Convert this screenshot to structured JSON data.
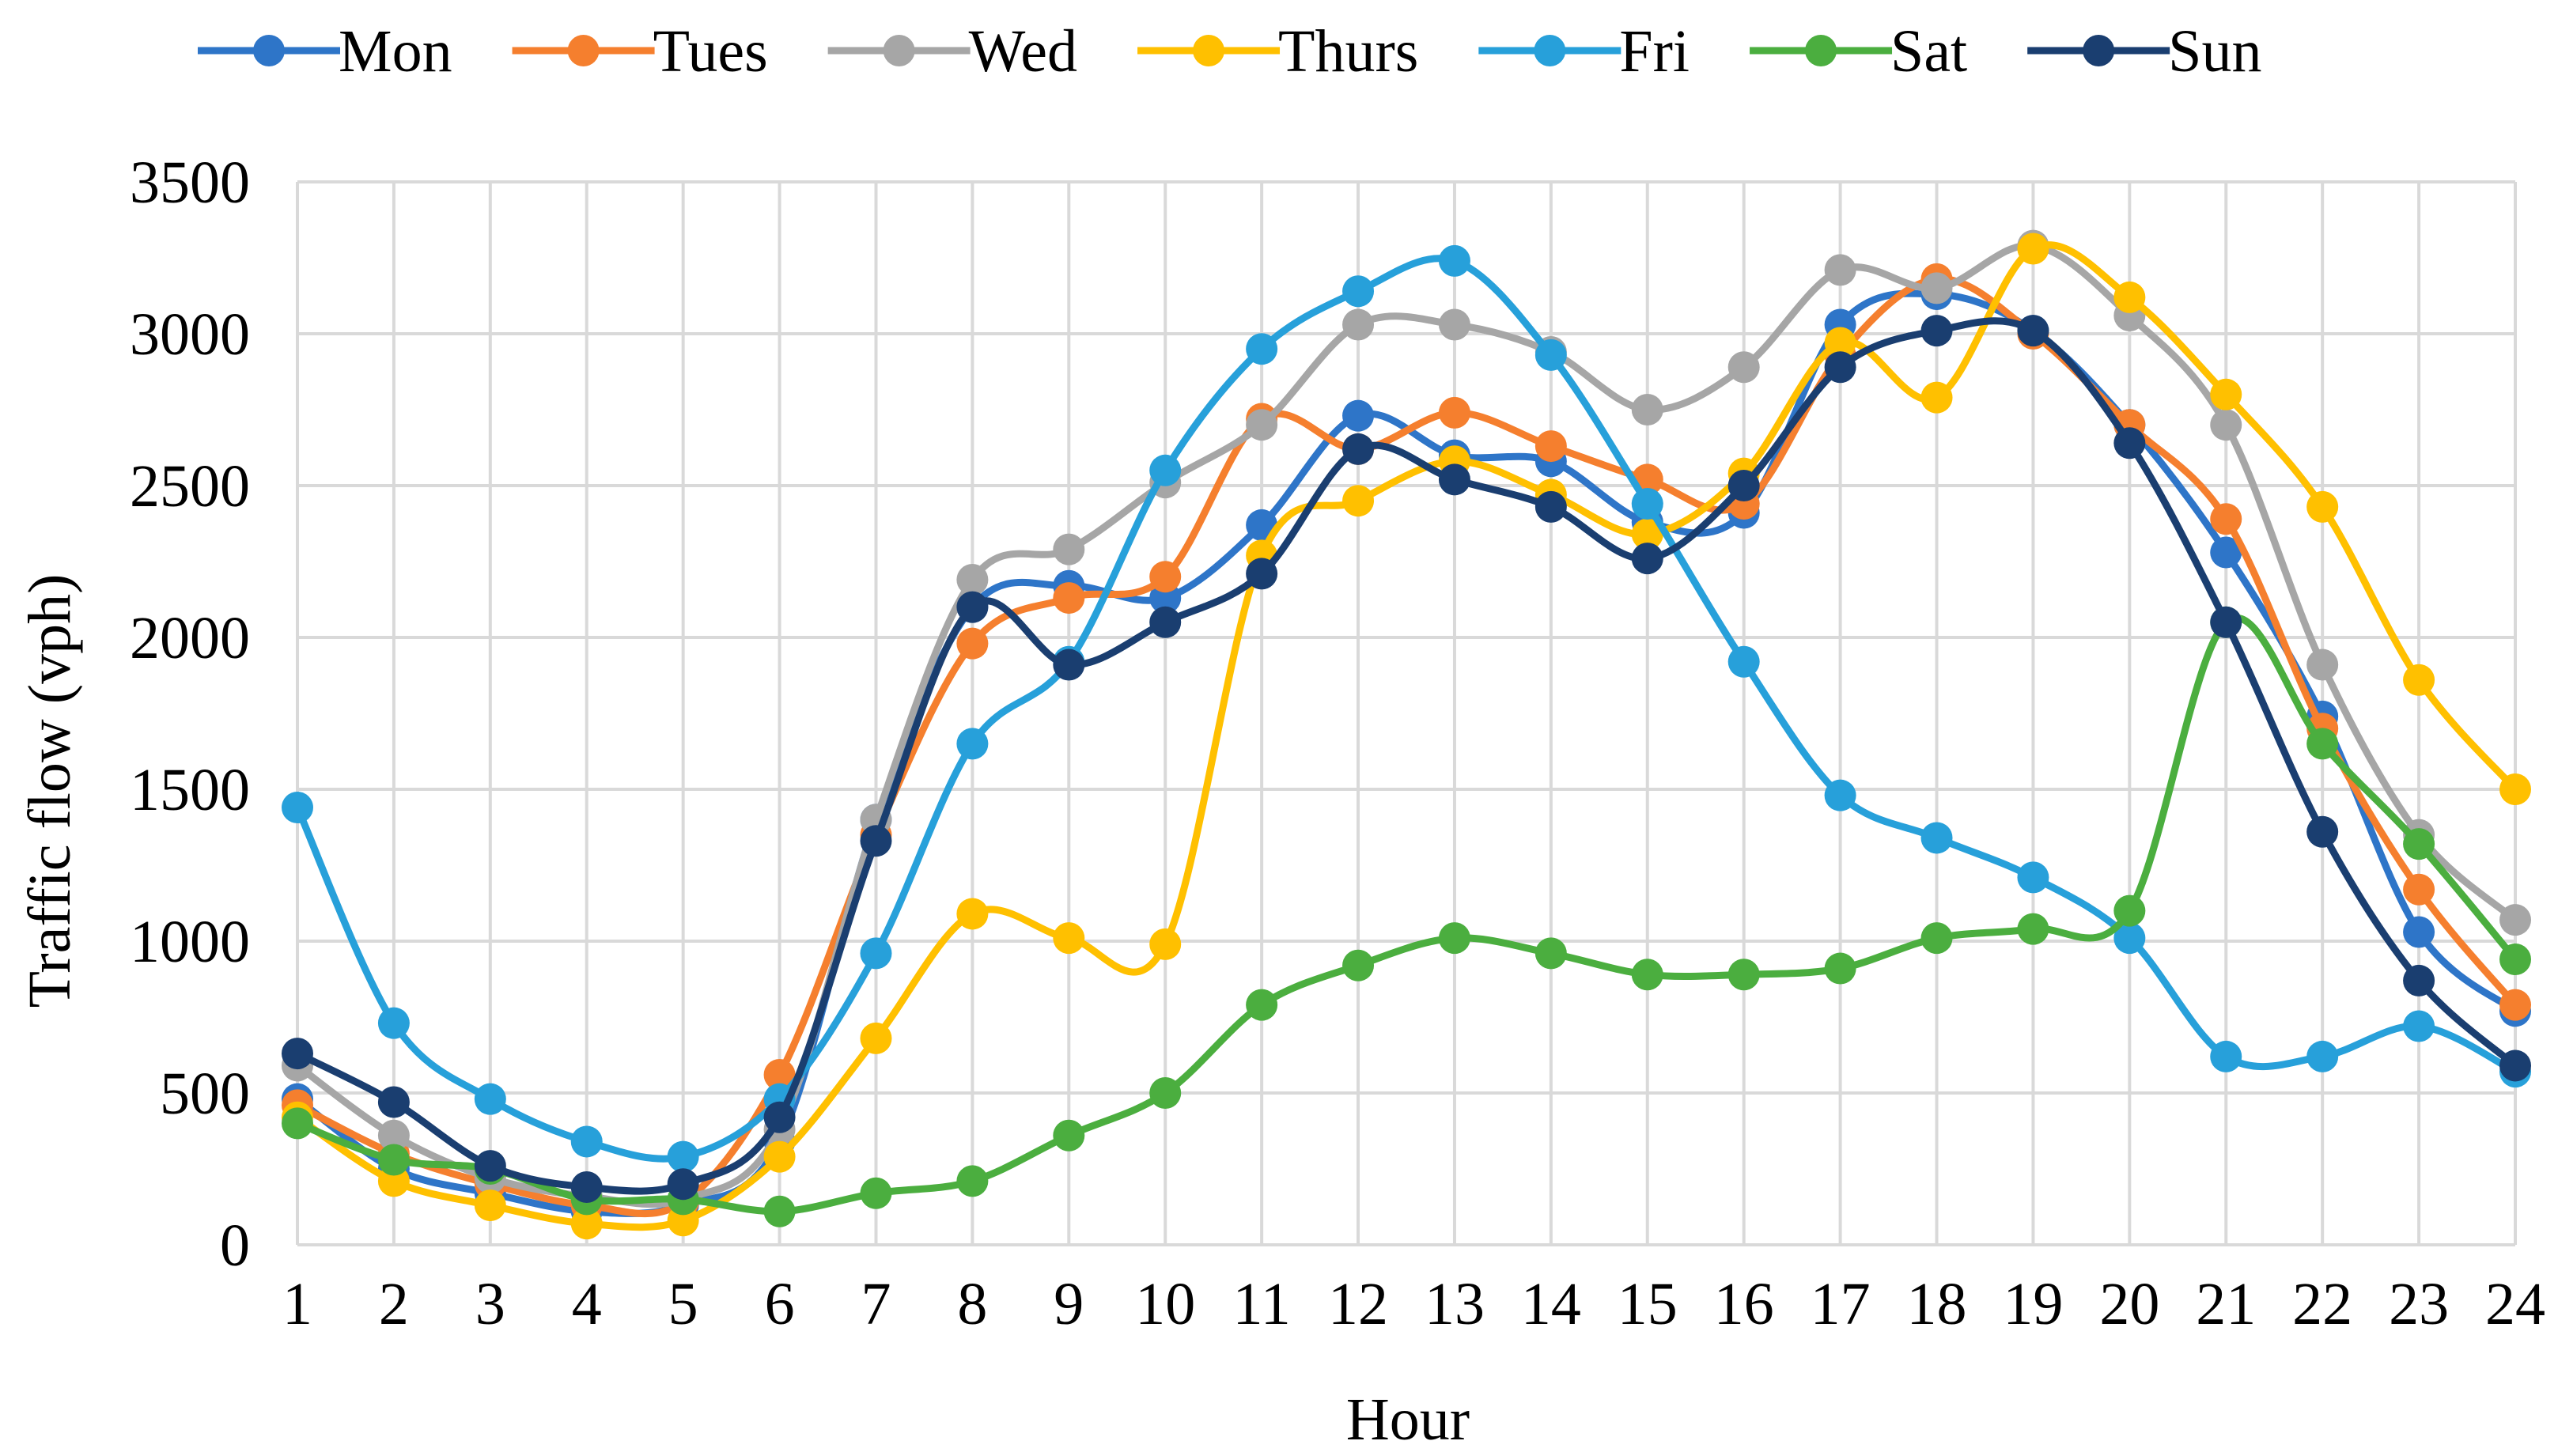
{
  "chart_data": {
    "type": "line",
    "title": "",
    "xlabel": "Hour",
    "ylabel": "Traffic flow (vph)",
    "ylim": [
      0,
      3500
    ],
    "yticks": [
      "0",
      "500",
      "1000",
      "1500",
      "2000",
      "2500",
      "3000",
      "3500"
    ],
    "x": [
      "1",
      "2",
      "3",
      "4",
      "5",
      "6",
      "7",
      "8",
      "9",
      "10",
      "11",
      "12",
      "13",
      "14",
      "15",
      "16",
      "17",
      "18",
      "19",
      "20",
      "21",
      "22",
      "23",
      "24"
    ],
    "grid": true,
    "legend_position": "top",
    "series": [
      {
        "name": "Mon",
        "color": "#2E75C8",
        "values": [
          480,
          250,
          170,
          110,
          130,
          340,
          1400,
          2100,
          2170,
          2130,
          2370,
          2730,
          2600,
          2580,
          2380,
          2410,
          3030,
          3130,
          3010,
          2700,
          2280,
          1740,
          1030,
          770
        ]
      },
      {
        "name": "Tues",
        "color": "#F57F2E",
        "values": [
          460,
          300,
          200,
          130,
          140,
          560,
          1350,
          1980,
          2130,
          2200,
          2720,
          2620,
          2740,
          2630,
          2520,
          2440,
          2930,
          3180,
          3000,
          2700,
          2390,
          1700,
          1170,
          790
        ]
      },
      {
        "name": "Wed",
        "color": "#A6A6A6",
        "values": [
          590,
          360,
          220,
          160,
          150,
          380,
          1400,
          2190,
          2290,
          2510,
          2700,
          3030,
          3030,
          2940,
          2750,
          2890,
          3210,
          3150,
          3290,
          3060,
          2700,
          1910,
          1350,
          1070
        ]
      },
      {
        "name": "Thurs",
        "color": "#FFC000",
        "values": [
          420,
          210,
          130,
          70,
          80,
          290,
          680,
          1090,
          1010,
          990,
          2270,
          2450,
          2580,
          2470,
          2340,
          2540,
          2970,
          2790,
          3280,
          3120,
          2800,
          2430,
          1860,
          1500
        ]
      },
      {
        "name": "Fri",
        "color": "#27A0DA",
        "values": [
          1440,
          730,
          480,
          340,
          290,
          480,
          960,
          1650,
          1920,
          2550,
          2950,
          3140,
          3240,
          2930,
          2440,
          1920,
          1480,
          1340,
          1210,
          1010,
          620,
          620,
          720,
          570
        ]
      },
      {
        "name": "Sat",
        "color": "#4BAE3F",
        "values": [
          400,
          280,
          250,
          150,
          150,
          110,
          170,
          210,
          360,
          500,
          790,
          920,
          1010,
          960,
          890,
          890,
          910,
          1010,
          1040,
          1100,
          2050,
          1650,
          1320,
          940
        ]
      },
      {
        "name": "Sun",
        "color": "#1A3E70",
        "values": [
          630,
          470,
          260,
          190,
          200,
          420,
          1330,
          2100,
          1910,
          2050,
          2210,
          2620,
          2520,
          2430,
          2260,
          2500,
          2890,
          3010,
          3010,
          2640,
          2050,
          1360,
          870,
          590
        ]
      }
    ]
  }
}
